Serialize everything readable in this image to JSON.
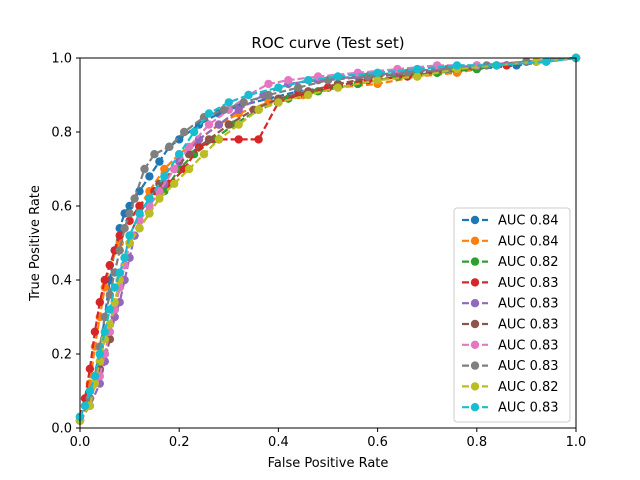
{
  "chart_data": {
    "type": "line",
    "title": "ROC curve (Test set)",
    "xlabel": "False Positive Rate",
    "ylabel": "True Positive Rate",
    "xlim": [
      0.0,
      1.0
    ],
    "ylim": [
      0.0,
      1.0
    ],
    "xticks": [
      "0.0",
      "0.2",
      "0.4",
      "0.6",
      "0.8",
      "1.0"
    ],
    "yticks": [
      "0.0",
      "0.2",
      "0.4",
      "0.6",
      "0.8",
      "1.0"
    ],
    "grid": false,
    "legend_position": "lower-right",
    "line_style": "dashed",
    "marker": "circle",
    "series": [
      {
        "name": "AUC 0.84",
        "color": "#1f77b4",
        "x": [
          0.0,
          0.01,
          0.02,
          0.04,
          0.05,
          0.06,
          0.07,
          0.08,
          0.09,
          0.1,
          0.12,
          0.14,
          0.16,
          0.18,
          0.2,
          0.24,
          0.28,
          0.32,
          0.38,
          0.44,
          0.5,
          0.56,
          0.64,
          0.72,
          0.8,
          0.88,
          0.94,
          1.0
        ],
        "y": [
          0.03,
          0.06,
          0.1,
          0.2,
          0.3,
          0.4,
          0.48,
          0.54,
          0.58,
          0.6,
          0.64,
          0.68,
          0.72,
          0.76,
          0.78,
          0.82,
          0.85,
          0.87,
          0.89,
          0.91,
          0.92,
          0.93,
          0.95,
          0.96,
          0.97,
          0.98,
          0.99,
          1.0
        ]
      },
      {
        "name": "AUC 0.84",
        "color": "#ff7f0e",
        "x": [
          0.0,
          0.02,
          0.03,
          0.04,
          0.05,
          0.06,
          0.08,
          0.1,
          0.12,
          0.14,
          0.17,
          0.2,
          0.24,
          0.28,
          0.32,
          0.38,
          0.45,
          0.52,
          0.6,
          0.68,
          0.76,
          0.84,
          0.92,
          1.0
        ],
        "y": [
          0.03,
          0.12,
          0.22,
          0.3,
          0.38,
          0.44,
          0.5,
          0.56,
          0.6,
          0.64,
          0.7,
          0.74,
          0.78,
          0.82,
          0.85,
          0.88,
          0.9,
          0.92,
          0.93,
          0.95,
          0.96,
          0.98,
          0.99,
          1.0
        ]
      },
      {
        "name": "AUC 0.82",
        "color": "#2ca02c",
        "x": [
          0.0,
          0.02,
          0.03,
          0.05,
          0.06,
          0.07,
          0.08,
          0.09,
          0.1,
          0.12,
          0.14,
          0.17,
          0.2,
          0.23,
          0.27,
          0.31,
          0.36,
          0.42,
          0.48,
          0.56,
          0.64,
          0.72,
          0.8,
          0.9,
          1.0
        ],
        "y": [
          0.02,
          0.08,
          0.14,
          0.2,
          0.26,
          0.32,
          0.38,
          0.44,
          0.5,
          0.54,
          0.58,
          0.64,
          0.7,
          0.74,
          0.78,
          0.82,
          0.86,
          0.89,
          0.91,
          0.93,
          0.95,
          0.96,
          0.97,
          0.99,
          1.0
        ]
      },
      {
        "name": "AUC 0.83",
        "color": "#d62728",
        "x": [
          0.0,
          0.01,
          0.02,
          0.03,
          0.04,
          0.05,
          0.06,
          0.07,
          0.08,
          0.1,
          0.12,
          0.15,
          0.18,
          0.21,
          0.24,
          0.28,
          0.32,
          0.36,
          0.4,
          0.44,
          0.5,
          0.58,
          0.66,
          0.76,
          0.86,
          1.0
        ],
        "y": [
          0.03,
          0.08,
          0.16,
          0.26,
          0.34,
          0.4,
          0.44,
          0.48,
          0.52,
          0.56,
          0.6,
          0.64,
          0.66,
          0.7,
          0.76,
          0.78,
          0.78,
          0.78,
          0.88,
          0.9,
          0.92,
          0.94,
          0.95,
          0.97,
          0.98,
          1.0
        ]
      },
      {
        "name": "AUC 0.83",
        "color": "#9467bd",
        "x": [
          0.0,
          0.02,
          0.04,
          0.05,
          0.06,
          0.07,
          0.08,
          0.09,
          0.1,
          0.11,
          0.12,
          0.14,
          0.17,
          0.2,
          0.24,
          0.28,
          0.32,
          0.37,
          0.42,
          0.48,
          0.56,
          0.64,
          0.72,
          0.8,
          0.9,
          1.0
        ],
        "y": [
          0.02,
          0.06,
          0.12,
          0.18,
          0.24,
          0.3,
          0.34,
          0.4,
          0.46,
          0.52,
          0.56,
          0.6,
          0.66,
          0.72,
          0.78,
          0.82,
          0.86,
          0.9,
          0.93,
          0.94,
          0.95,
          0.96,
          0.97,
          0.98,
          0.99,
          1.0
        ]
      },
      {
        "name": "AUC 0.83",
        "color": "#8c564b",
        "x": [
          0.0,
          0.02,
          0.04,
          0.06,
          0.07,
          0.08,
          0.09,
          0.1,
          0.12,
          0.14,
          0.16,
          0.19,
          0.22,
          0.26,
          0.3,
          0.35,
          0.4,
          0.46,
          0.52,
          0.6,
          0.68,
          0.76,
          0.84,
          0.92,
          1.0
        ],
        "y": [
          0.02,
          0.08,
          0.16,
          0.24,
          0.32,
          0.4,
          0.46,
          0.52,
          0.58,
          0.62,
          0.66,
          0.7,
          0.74,
          0.78,
          0.82,
          0.86,
          0.89,
          0.91,
          0.93,
          0.95,
          0.96,
          0.97,
          0.98,
          0.99,
          1.0
        ]
      },
      {
        "name": "AUC 0.83",
        "color": "#e377c2",
        "x": [
          0.0,
          0.02,
          0.04,
          0.05,
          0.06,
          0.07,
          0.08,
          0.09,
          0.1,
          0.12,
          0.14,
          0.16,
          0.19,
          0.22,
          0.26,
          0.3,
          0.34,
          0.38,
          0.42,
          0.48,
          0.56,
          0.64,
          0.72,
          0.8,
          0.9,
          1.0
        ],
        "y": [
          0.02,
          0.08,
          0.14,
          0.2,
          0.26,
          0.32,
          0.38,
          0.44,
          0.5,
          0.56,
          0.6,
          0.64,
          0.7,
          0.76,
          0.82,
          0.86,
          0.9,
          0.93,
          0.94,
          0.95,
          0.96,
          0.97,
          0.98,
          0.98,
          0.99,
          1.0
        ]
      },
      {
        "name": "AUC 0.83",
        "color": "#7f7f7f",
        "x": [
          0.0,
          0.02,
          0.03,
          0.04,
          0.05,
          0.06,
          0.07,
          0.08,
          0.09,
          0.1,
          0.11,
          0.13,
          0.15,
          0.18,
          0.21,
          0.25,
          0.29,
          0.33,
          0.38,
          0.44,
          0.5,
          0.58,
          0.66,
          0.74,
          0.82,
          0.9,
          1.0
        ],
        "y": [
          0.02,
          0.08,
          0.14,
          0.22,
          0.3,
          0.36,
          0.42,
          0.48,
          0.54,
          0.58,
          0.62,
          0.7,
          0.74,
          0.76,
          0.8,
          0.84,
          0.86,
          0.88,
          0.9,
          0.92,
          0.94,
          0.95,
          0.96,
          0.97,
          0.98,
          0.99,
          1.0
        ]
      },
      {
        "name": "AUC 0.82",
        "color": "#bcbd22",
        "x": [
          0.0,
          0.02,
          0.03,
          0.04,
          0.05,
          0.06,
          0.07,
          0.08,
          0.09,
          0.1,
          0.12,
          0.14,
          0.16,
          0.19,
          0.22,
          0.25,
          0.28,
          0.32,
          0.36,
          0.4,
          0.46,
          0.52,
          0.6,
          0.68,
          0.76,
          0.84,
          0.92,
          1.0
        ],
        "y": [
          0.02,
          0.06,
          0.12,
          0.18,
          0.24,
          0.28,
          0.34,
          0.4,
          0.46,
          0.5,
          0.54,
          0.58,
          0.62,
          0.66,
          0.7,
          0.74,
          0.78,
          0.82,
          0.86,
          0.88,
          0.9,
          0.92,
          0.94,
          0.95,
          0.97,
          0.98,
          0.99,
          1.0
        ]
      },
      {
        "name": "AUC 0.83",
        "color": "#17becf",
        "x": [
          0.0,
          0.01,
          0.02,
          0.03,
          0.04,
          0.05,
          0.06,
          0.07,
          0.08,
          0.09,
          0.1,
          0.12,
          0.14,
          0.17,
          0.2,
          0.23,
          0.26,
          0.3,
          0.34,
          0.4,
          0.46,
          0.52,
          0.6,
          0.68,
          0.76,
          0.84,
          0.94,
          1.0
        ],
        "y": [
          0.03,
          0.06,
          0.1,
          0.14,
          0.2,
          0.26,
          0.32,
          0.38,
          0.42,
          0.46,
          0.52,
          0.58,
          0.62,
          0.68,
          0.74,
          0.8,
          0.85,
          0.88,
          0.9,
          0.92,
          0.94,
          0.95,
          0.96,
          0.97,
          0.98,
          0.98,
          0.99,
          1.0
        ]
      }
    ]
  }
}
